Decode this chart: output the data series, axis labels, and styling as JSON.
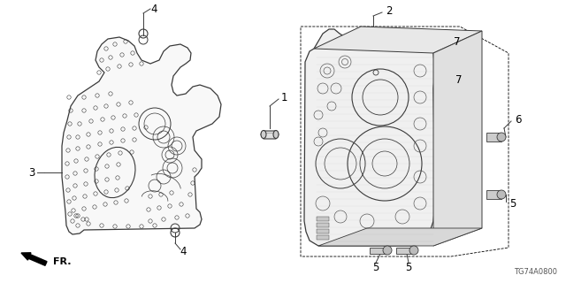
{
  "bg_color": "#ffffff",
  "part_code": "TG74A0800",
  "fr_label": "FR.",
  "line_color": "#3a3a3a",
  "label_fontsize": 7.0
}
